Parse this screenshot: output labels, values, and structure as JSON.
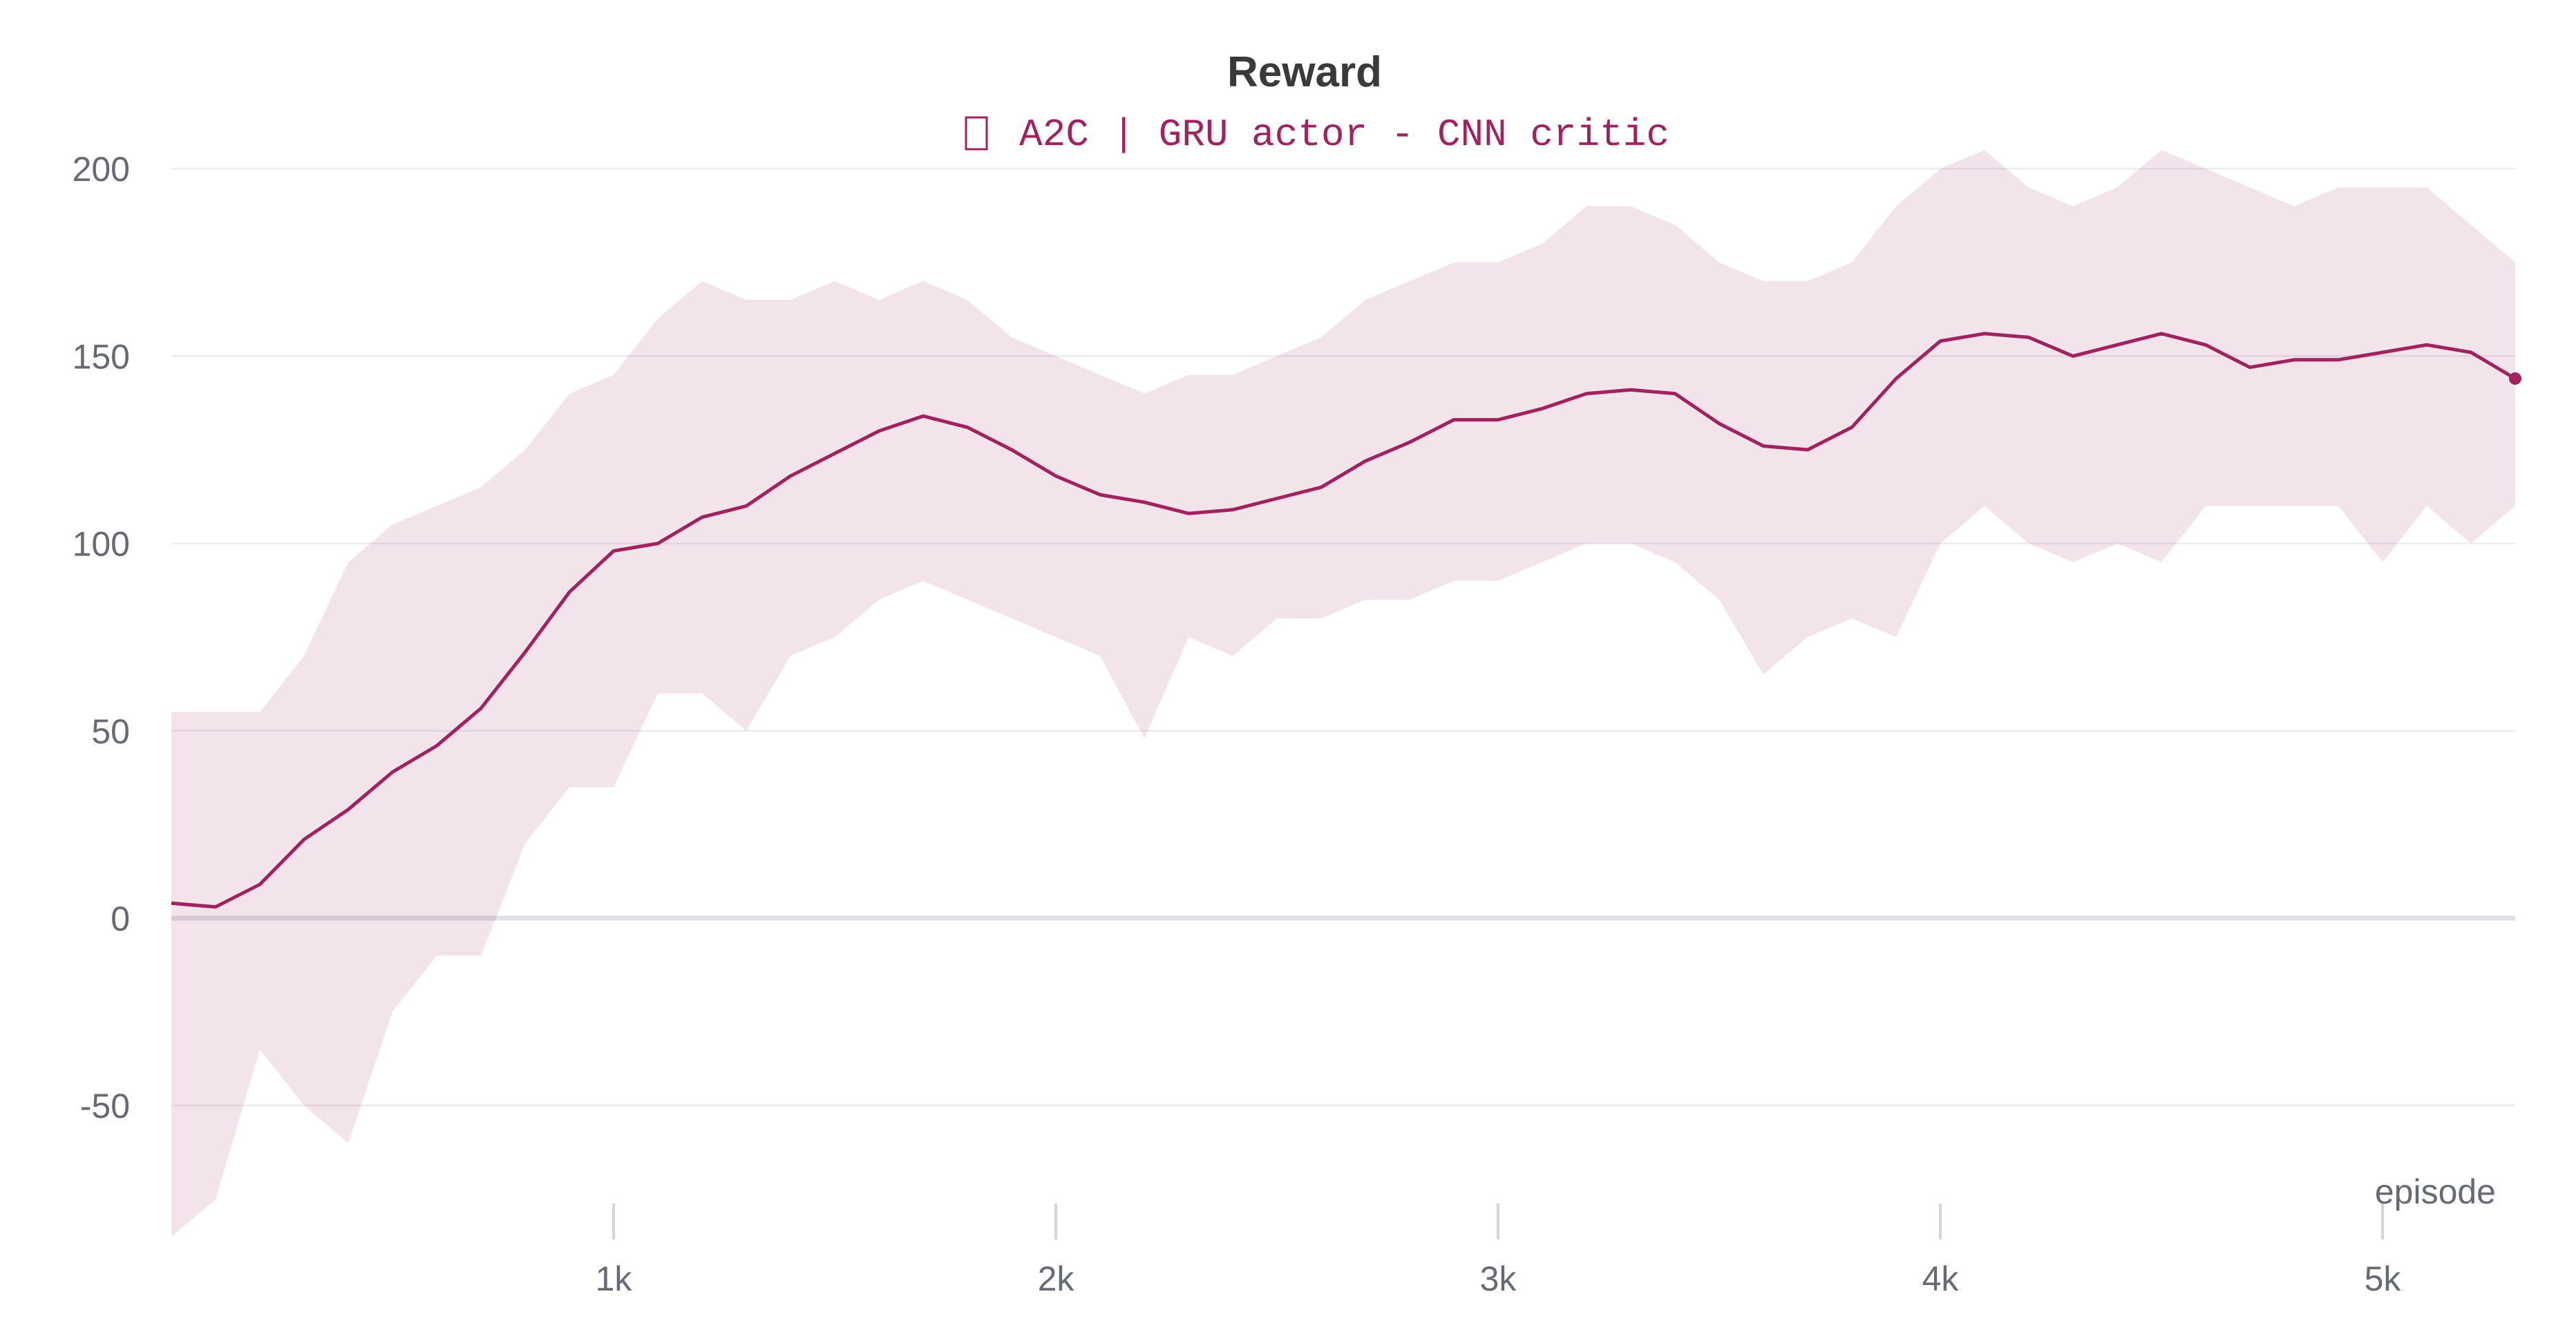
{
  "chart_data": {
    "type": "line",
    "title": "Reward",
    "legend": [
      {
        "label": "A2C | GRU actor - CNN critic",
        "color": "#a0225e",
        "placement": "top-center"
      }
    ],
    "xlabel": "episode",
    "ylabel": "",
    "xlim": [
      0,
      5300
    ],
    "ylim": [
      -85,
      210
    ],
    "x_ticks": [
      {
        "value": 1000,
        "label": "1k"
      },
      {
        "value": 2000,
        "label": "2k"
      },
      {
        "value": 3000,
        "label": "3k"
      },
      {
        "value": 4000,
        "label": "4k"
      },
      {
        "value": 5000,
        "label": "5k"
      }
    ],
    "y_ticks": [
      {
        "value": 200,
        "label": "200"
      },
      {
        "value": 150,
        "label": "150"
      },
      {
        "value": 100,
        "label": "100"
      },
      {
        "value": 50,
        "label": "50"
      },
      {
        "value": 0,
        "label": "0"
      },
      {
        "value": -50,
        "label": "-50"
      }
    ],
    "grid": true,
    "series": [
      {
        "name": "A2C | GRU actor - CNN critic",
        "color": "#a0225e",
        "smoothed": {
          "x": [
            0,
            100,
            200,
            300,
            400,
            500,
            600,
            700,
            800,
            900,
            1000,
            1100,
            1200,
            1300,
            1400,
            1500,
            1600,
            1700,
            1800,
            1900,
            2000,
            2100,
            2200,
            2300,
            2400,
            2500,
            2600,
            2700,
            2800,
            2900,
            3000,
            3100,
            3200,
            3300,
            3400,
            3500,
            3600,
            3700,
            3800,
            3900,
            4000,
            4100,
            4200,
            4300,
            4400,
            4500,
            4600,
            4700,
            4800,
            4900,
            5000,
            5100,
            5200,
            5300
          ],
          "y": [
            4,
            3,
            9,
            21,
            29,
            39,
            46,
            56,
            71,
            87,
            98,
            100,
            107,
            110,
            118,
            124,
            130,
            134,
            131,
            125,
            118,
            113,
            111,
            108,
            109,
            112,
            115,
            122,
            127,
            133,
            133,
            136,
            140,
            141,
            140,
            132,
            126,
            125,
            131,
            144,
            154,
            156,
            155,
            150,
            153,
            156,
            153,
            147,
            149,
            149,
            151,
            153,
            151,
            144
          ]
        },
        "raw_band": {
          "x": [
            0,
            100,
            200,
            300,
            400,
            500,
            600,
            700,
            800,
            900,
            1000,
            1100,
            1200,
            1300,
            1400,
            1500,
            1600,
            1700,
            1800,
            1900,
            2000,
            2100,
            2200,
            2300,
            2400,
            2500,
            2600,
            2700,
            2800,
            2900,
            3000,
            3100,
            3200,
            3300,
            3400,
            3500,
            3600,
            3700,
            3800,
            3900,
            4000,
            4100,
            4200,
            4300,
            4400,
            4500,
            4600,
            4700,
            4800,
            4900,
            5000,
            5100,
            5200,
            5300
          ],
          "min": [
            -85,
            -75,
            -35,
            -50,
            -60,
            -25,
            -10,
            -10,
            20,
            35,
            35,
            60,
            60,
            50,
            70,
            75,
            85,
            90,
            85,
            80,
            75,
            70,
            48,
            75,
            70,
            80,
            80,
            85,
            85,
            90,
            90,
            95,
            100,
            100,
            95,
            85,
            65,
            75,
            80,
            75,
            100,
            110,
            100,
            95,
            100,
            95,
            110,
            110,
            110,
            110,
            95,
            110,
            100,
            110
          ],
          "max": [
            55,
            55,
            55,
            70,
            95,
            105,
            110,
            115,
            125,
            140,
            145,
            160,
            170,
            165,
            165,
            170,
            165,
            170,
            165,
            155,
            150,
            145,
            140,
            145,
            145,
            150,
            155,
            165,
            170,
            175,
            175,
            180,
            190,
            190,
            185,
            175,
            170,
            170,
            175,
            190,
            200,
            205,
            195,
            190,
            195,
            205,
            200,
            195,
            190,
            195,
            195,
            195,
            185,
            175
          ]
        }
      }
    ]
  }
}
